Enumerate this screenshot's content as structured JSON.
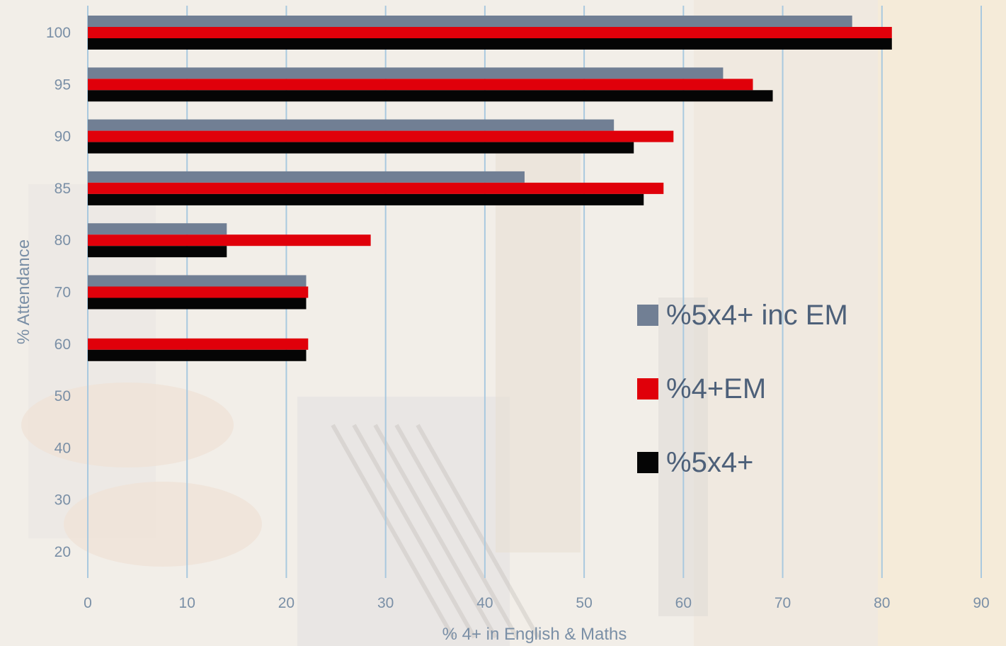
{
  "chart_data": {
    "type": "bar",
    "orientation": "horizontal",
    "categories": [
      "100",
      "95",
      "90",
      "85",
      "80",
      "70",
      "60",
      "50",
      "40",
      "30",
      "20"
    ],
    "series": [
      {
        "name": "%5x4+ inc EM",
        "color": "#717f94",
        "values": [
          77,
          64,
          53,
          44,
          14,
          22,
          null,
          null,
          null,
          null,
          null
        ]
      },
      {
        "name": "%4+EM",
        "color": "#e0000a",
        "values": [
          81,
          67,
          59,
          58,
          28.5,
          22.2,
          22.2,
          null,
          null,
          null,
          null
        ]
      },
      {
        "name": "%5x4+",
        "color": "#050505",
        "values": [
          81,
          69,
          55,
          56,
          14,
          22,
          22,
          null,
          null,
          null,
          null
        ]
      }
    ],
    "xlabel": "% 4+ in English & Maths",
    "ylabel": "% Attendance",
    "xlim": [
      0,
      90
    ],
    "xticks": [
      "0",
      "10",
      "20",
      "30",
      "40",
      "50",
      "60",
      "70",
      "80",
      "90"
    ],
    "grid": "vertical",
    "legend_position": "right"
  }
}
